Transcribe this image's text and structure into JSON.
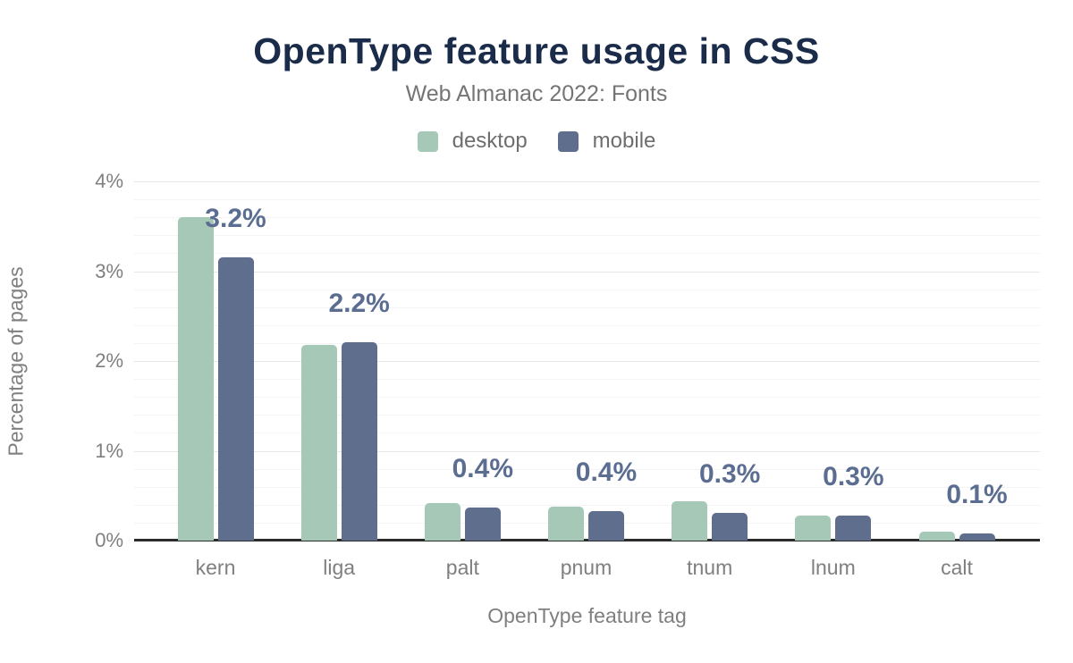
{
  "header": {
    "title": "OpenType feature usage in CSS",
    "subtitle": "Web Almanac 2022: Fonts"
  },
  "colors": {
    "title_text": "#1b2c4a",
    "desktop": "#a6c9b7",
    "mobile": "#5f6e8c",
    "data_label": "#5b6e91",
    "axis_text": "#7f7f7f",
    "axis_line": "#2b2b2b",
    "grid_major": "#e7e7e7",
    "grid_minor": "#f4f4f4",
    "background": "#ffffff"
  },
  "chart_data": {
    "type": "bar",
    "title": "OpenType feature usage in CSS",
    "subtitle": "Web Almanac 2022: Fonts",
    "categories": [
      "kern",
      "liga",
      "palt",
      "pnum",
      "tnum",
      "lnum",
      "calt"
    ],
    "series": [
      {
        "name": "desktop",
        "color": "#a6c9b7",
        "values": [
          3.6,
          2.18,
          0.42,
          0.38,
          0.44,
          0.28,
          0.1
        ]
      },
      {
        "name": "mobile",
        "color": "#5f6e8c",
        "values": [
          3.15,
          2.21,
          0.37,
          0.33,
          0.31,
          0.28,
          0.08
        ]
      }
    ],
    "bar_labels": [
      "3.2%",
      "2.2%",
      "0.4%",
      "0.4%",
      "0.3%",
      "0.3%",
      "0.1%"
    ],
    "xlabel": "OpenType feature tag",
    "ylabel": "Percentage of pages",
    "ylim": [
      0,
      4
    ],
    "yticks": [
      "0%",
      "1%",
      "2%",
      "3%",
      "4%"
    ],
    "grid": "horizontal, minor lines every 0.2%",
    "legend_position": "top center"
  }
}
